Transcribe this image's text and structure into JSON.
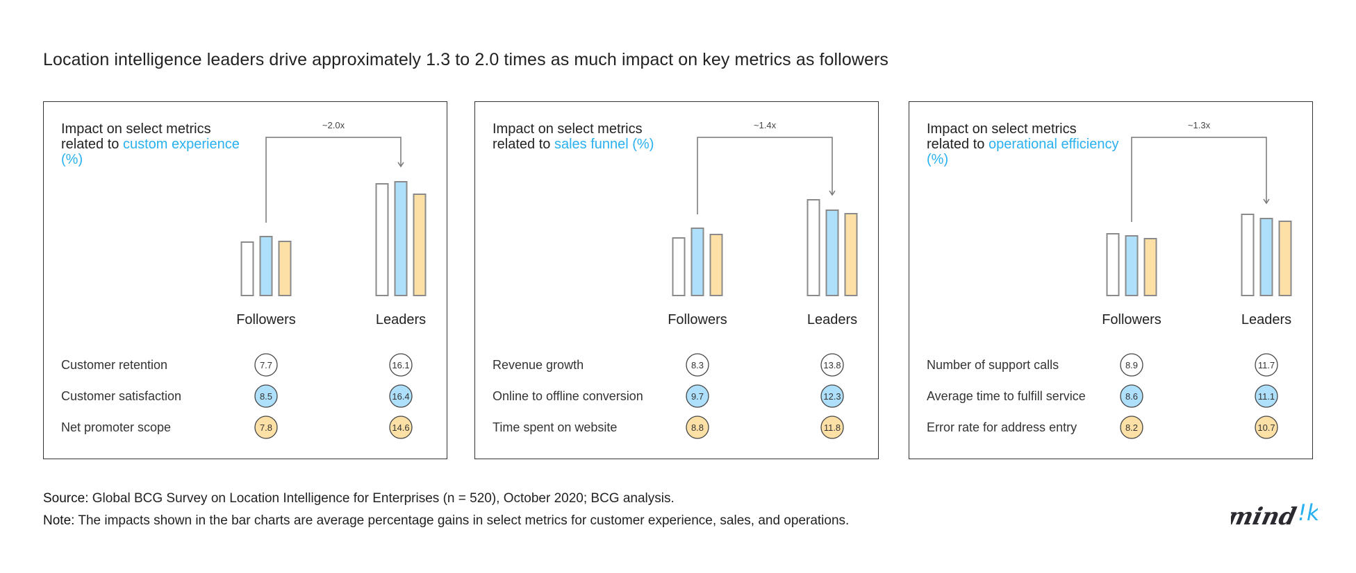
{
  "title": "Location intelligence leaders drive approximately 1.3 to 2.0 times as much impact on key metrics as followers",
  "colors": {
    "series": [
      "#ffffff",
      "#aee0fb",
      "#fde0a6"
    ],
    "outline": "#8a8a8a",
    "highlight": "#29b0f0"
  },
  "chart_data": [
    {
      "type": "bar",
      "title_prefix": "Impact on select metrics related to",
      "title_highlight": "custom experience (%)",
      "multiplier": "~2.0x",
      "categories": [
        "Followers",
        "Leaders"
      ],
      "series": [
        {
          "name": "Customer retention",
          "values": [
            7.7,
            16.1
          ]
        },
        {
          "name": "Customer satisfaction",
          "values": [
            8.5,
            16.4
          ]
        },
        {
          "name": "Net promoter scope",
          "values": [
            7.8,
            14.6
          ]
        }
      ]
    },
    {
      "type": "bar",
      "title_prefix": "Impact on select metrics related to",
      "title_highlight": "sales funnel (%)",
      "multiplier": "~1.4x",
      "categories": [
        "Followers",
        "Leaders"
      ],
      "series": [
        {
          "name": "Revenue growth",
          "values": [
            8.3,
            13.8
          ]
        },
        {
          "name": "Online to offline conversion",
          "values": [
            9.7,
            12.3
          ]
        },
        {
          "name": "Time spent on website",
          "values": [
            8.8,
            11.8
          ]
        }
      ]
    },
    {
      "type": "bar",
      "title_prefix": "Impact on select metrics related to",
      "title_highlight": "operational efficiency (%)",
      "multiplier": "~1.3x",
      "categories": [
        "Followers",
        "Leaders"
      ],
      "series": [
        {
          "name": "Number of support calls",
          "values": [
            8.9,
            11.7
          ]
        },
        {
          "name": "Average time to fulfill service",
          "values": [
            8.6,
            11.1
          ]
        },
        {
          "name": "Error rate for address entry",
          "values": [
            8.2,
            10.7
          ]
        }
      ]
    }
  ],
  "footer": {
    "source_label": "Source:",
    "source_text": " Global BCG Survey on Location Intelligence for Enterprises (n = 520), October 2020; BCG analysis.",
    "note_label": "Note:",
    "note_text": " The impacts shown in the bar charts are average percentage gains in select metrics for customer experience, sales, and operations."
  },
  "logo": {
    "text_dark": "mind",
    "text_accent": "!k"
  }
}
